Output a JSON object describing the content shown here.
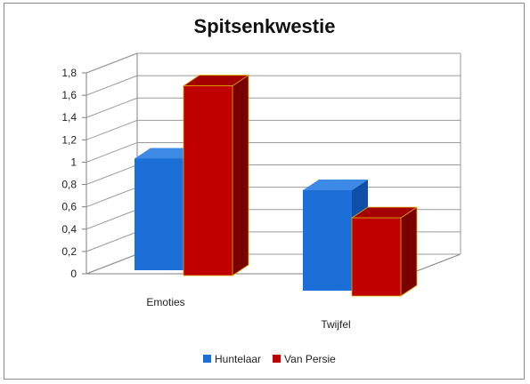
{
  "chart_data": {
    "type": "bar",
    "title": "Spitsenkwestie",
    "categories": [
      "Emoties",
      "Twijfel"
    ],
    "series": [
      {
        "name": "Huntelaar",
        "values": [
          1.0,
          0.9
        ]
      },
      {
        "name": "Van Persie",
        "values": [
          1.7,
          0.7
        ]
      }
    ],
    "ylim": [
      0,
      1.8
    ],
    "yticks": [
      "0",
      "0,2",
      "0,4",
      "0,6",
      "0,8",
      "1",
      "1,2",
      "1,4",
      "1,6",
      "1,8"
    ],
    "grid": true,
    "legend_position": "bottom",
    "three_d": true
  },
  "colors": {
    "Huntelaar": {
      "front": "#1b6fd6",
      "side": "#0f4fa8",
      "top": "#3d8ae6"
    },
    "Van Persie": {
      "front": "#c00000",
      "side": "#7a0000",
      "top": "#a50000"
    },
    "grid": "#9a9a9a",
    "wall": "#7f7f7f"
  }
}
